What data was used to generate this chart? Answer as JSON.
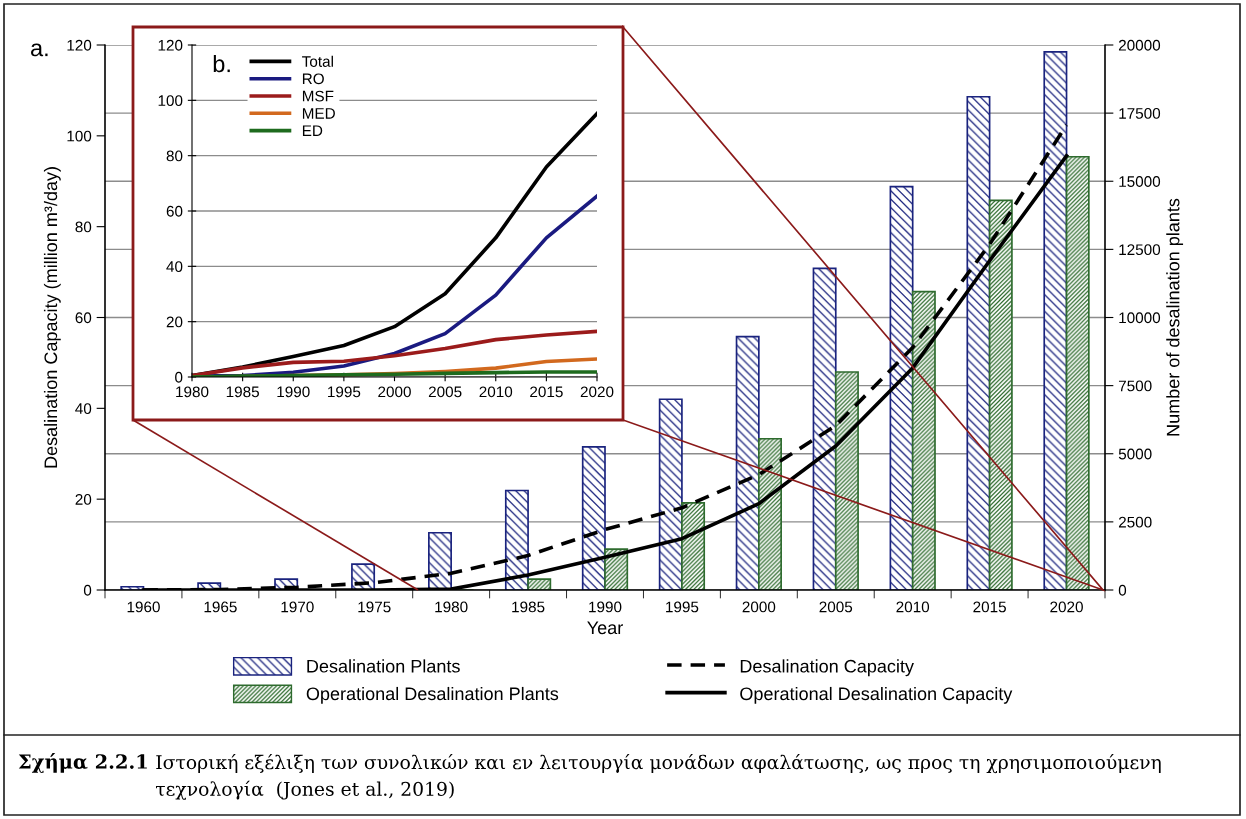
{
  "chart_data": [
    {
      "type": "bar",
      "categories": [
        "1960",
        "1965",
        "1970",
        "1975",
        "1980",
        "1985",
        "1990",
        "1995",
        "2000",
        "2005",
        "2010",
        "2015",
        "2020"
      ],
      "xlabel": "Year",
      "ylabel": "Desalination Capacity (million m³/day)",
      "y2label": "Number of desalination plants",
      "ylim": [
        0,
        120
      ],
      "yticks": [
        0,
        20,
        40,
        60,
        80,
        100,
        120
      ],
      "y2lim": [
        0,
        20000
      ],
      "y2ticks": [
        0,
        2500,
        5000,
        7500,
        10000,
        12500,
        15000,
        17500,
        20000
      ],
      "grid": "y",
      "legend": "bottom",
      "series": [
        {
          "name": "Desalination Plants",
          "type": "bar",
          "axis": "y2",
          "color": "#1a237e",
          "values": [
            120,
            250,
            400,
            950,
            2100,
            3650,
            5250,
            7000,
            9300,
            11800,
            14800,
            18100,
            19750
          ]
        },
        {
          "name": "Operational Desalination Plants",
          "type": "bar",
          "axis": "y2",
          "color": "#2e6b2e",
          "values": [
            0,
            0,
            0,
            0,
            0,
            400,
            1500,
            3200,
            5550,
            8000,
            10950,
            14300,
            15900
          ]
        },
        {
          "name": "Desalination Capacity",
          "type": "line",
          "axis": "y",
          "color": "#000000",
          "line_style": "dashed",
          "values": [
            0,
            0.1,
            0.6,
            1.6,
            3.7,
            7.6,
            13.3,
            18.1,
            25.4,
            36.2,
            53.4,
            76.1,
            102.4
          ]
        },
        {
          "name": "Operational Desalination Capacity",
          "type": "line",
          "axis": "y",
          "color": "#000000",
          "line_style": "solid",
          "values": [
            0,
            0,
            0,
            0,
            0.2,
            3.3,
            7.2,
            11.3,
            19.0,
            31.7,
            48.9,
            72.5,
            95.6
          ]
        }
      ],
      "annotations": [
        "a.",
        "Σχήμα 2.2.1",
        "Ιστορική εξέλιξη των συνολικών και εν λειτουργία μονάδων αφαλάτωσης, ως προς τη χρησιμοποιούμενη τεχνολογία  (Jones et al., 2019)"
      ]
    },
    {
      "type": "line",
      "x": [
        1980,
        1985,
        1990,
        1995,
        2000,
        2005,
        2010,
        2015,
        2020
      ],
      "xlim": [
        1980,
        2020
      ],
      "xticks": [
        1980,
        1985,
        1990,
        1995,
        2000,
        2005,
        2010,
        2015,
        2020
      ],
      "ylim": [
        0,
        120
      ],
      "yticks": [
        0,
        20,
        40,
        60,
        80,
        100,
        120
      ],
      "grid": "y",
      "legend": "top left",
      "series": [
        {
          "name": "Total",
          "color": "#000000",
          "values": [
            0.5,
            3.6,
            7.4,
            11.4,
            18.2,
            30.1,
            50.3,
            75.9,
            95.2
          ]
        },
        {
          "name": "RO",
          "color": "#1a1a80",
          "values": [
            0.3,
            0.5,
            1.7,
            4.0,
            8.5,
            15.7,
            29.6,
            50.3,
            65.4
          ]
        },
        {
          "name": "MSF",
          "color": "#9b1b1b",
          "values": [
            0.5,
            3.3,
            5.3,
            5.7,
            7.7,
            10.3,
            13.5,
            15.2,
            16.5
          ]
        },
        {
          "name": "MED",
          "color": "#d2691e",
          "values": [
            0,
            0.2,
            0.5,
            0.8,
            1.2,
            2.0,
            3.2,
            5.6,
            6.5
          ]
        },
        {
          "name": "ED",
          "color": "#1e6b1e",
          "values": [
            0,
            0.3,
            0.5,
            0.8,
            1.0,
            1.3,
            1.6,
            1.8,
            1.8
          ]
        }
      ],
      "annotations": [
        "b."
      ]
    }
  ]
}
